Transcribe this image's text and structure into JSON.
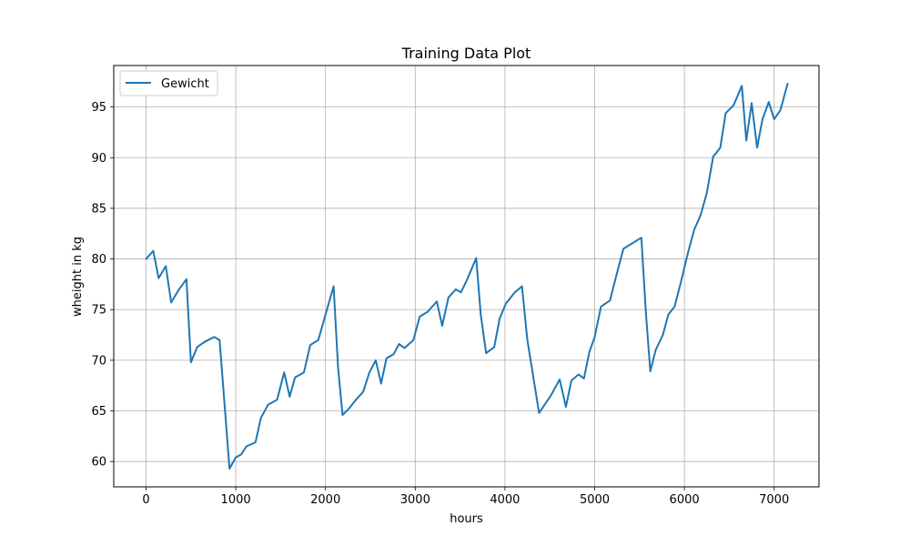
{
  "chart_data": {
    "type": "line",
    "title": "Training Data Plot",
    "xlabel": "hours",
    "ylabel": "wheight in kg",
    "xlim": [
      -360,
      7500
    ],
    "ylim": [
      57.5,
      99.1
    ],
    "xticks": [
      0,
      1000,
      2000,
      3000,
      4000,
      5000,
      6000,
      7000
    ],
    "yticks": [
      60,
      65,
      70,
      75,
      80,
      85,
      90,
      95
    ],
    "grid": true,
    "legend": "top-left",
    "colors": {
      "series": "#1f77b4",
      "grid": "#b0b0b0"
    },
    "series": [
      {
        "name": "Gewicht",
        "x": [
          0,
          80,
          140,
          220,
          280,
          360,
          450,
          500,
          570,
          650,
          760,
          820,
          930,
          1000,
          1060,
          1120,
          1220,
          1280,
          1360,
          1460,
          1540,
          1600,
          1660,
          1760,
          1830,
          1920,
          2000,
          2090,
          2140,
          2190,
          2260,
          2340,
          2420,
          2490,
          2560,
          2620,
          2680,
          2760,
          2820,
          2880,
          2980,
          3050,
          3140,
          3240,
          3300,
          3370,
          3450,
          3510,
          3580,
          3680,
          3730,
          3790,
          3880,
          3940,
          4010,
          4110,
          4190,
          4250,
          4380,
          4510,
          4610,
          4680,
          4740,
          4820,
          4880,
          4940,
          5000,
          5070,
          5170,
          5260,
          5320,
          5520,
          5570,
          5620,
          5680,
          5760,
          5820,
          5890,
          5960,
          6040,
          6110,
          6180,
          6250,
          6320,
          6400,
          6460,
          6550,
          6640,
          6690,
          6750,
          6810,
          6870,
          6940,
          7000,
          7070,
          7150
        ],
        "values": [
          80.0,
          80.8,
          78.1,
          79.3,
          75.7,
          76.9,
          78.0,
          69.8,
          71.3,
          71.8,
          72.3,
          72.0,
          59.3,
          60.4,
          60.7,
          61.5,
          61.9,
          64.3,
          65.6,
          66.1,
          68.8,
          66.4,
          68.3,
          68.8,
          71.5,
          72.0,
          74.5,
          77.3,
          69.3,
          64.6,
          65.2,
          66.1,
          66.9,
          68.8,
          70.0,
          67.7,
          70.2,
          70.6,
          71.6,
          71.2,
          72.0,
          74.3,
          74.8,
          75.8,
          73.4,
          76.2,
          77.0,
          76.7,
          78.0,
          80.1,
          74.5,
          70.7,
          71.3,
          74.1,
          75.6,
          76.7,
          77.3,
          72.0,
          64.8,
          66.5,
          68.1,
          65.4,
          68.0,
          68.6,
          68.2,
          70.8,
          72.3,
          75.3,
          75.9,
          79.0,
          81.0,
          82.1,
          74.8,
          68.9,
          71.0,
          72.5,
          74.5,
          75.3,
          77.7,
          80.6,
          82.9,
          84.3,
          86.5,
          90.1,
          91.0,
          94.4,
          95.2,
          97.1,
          91.7,
          95.4,
          91.0,
          93.8,
          95.5,
          93.8,
          94.7,
          97.3
        ]
      }
    ]
  }
}
